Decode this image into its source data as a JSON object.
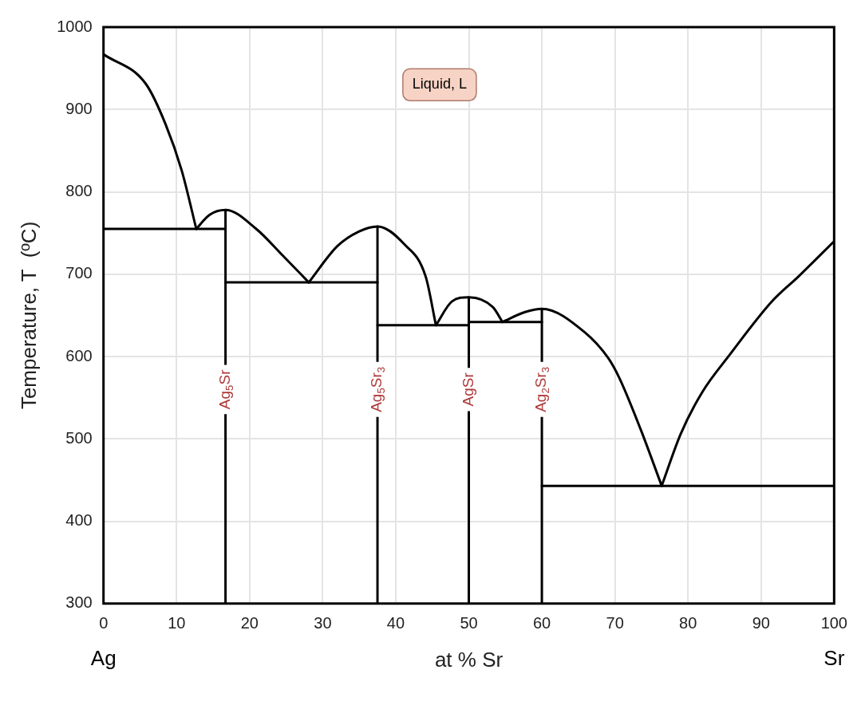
{
  "chart_data": {
    "type": "line",
    "xlabel": "at % Sr",
    "ylabel": "Temperature, T  (ºC)",
    "xlim": [
      0,
      100
    ],
    "ylim": [
      300,
      1000
    ],
    "xticks": [
      0,
      10,
      20,
      30,
      40,
      50,
      60,
      70,
      80,
      90,
      100
    ],
    "yticks": [
      300,
      400,
      500,
      600,
      700,
      800,
      900,
      1000
    ],
    "grid": true,
    "marker": "none",
    "line_style": "solid",
    "series": [
      {
        "color": "#000000",
        "x": [
          0,
          5.8,
          8.5,
          10.7,
          12.7
        ],
        "values": [
          967,
          931,
          882,
          826,
          755
        ]
      },
      {
        "color": "#000000",
        "x": [
          12.7,
          14.5,
          16.7,
          20.9,
          24.6,
          28.1
        ],
        "values": [
          755,
          772,
          778,
          755,
          722,
          690
        ]
      },
      {
        "color": "#000000",
        "x": [
          28.1,
          32,
          35,
          37.5,
          41.1,
          44.1,
          45.5
        ],
        "values": [
          690,
          734,
          752,
          758,
          737,
          697,
          638
        ]
      },
      {
        "color": "#000000",
        "x": [
          45.5,
          47.7,
          50,
          53.3,
          54.6
        ],
        "values": [
          638,
          667,
          672,
          660,
          642
        ]
      },
      {
        "color": "#000000",
        "x": [
          54.6,
          57.7,
          60,
          65.8,
          69.1,
          70.6,
          73.5,
          76.4
        ],
        "values": [
          642,
          654,
          658,
          630,
          598,
          574,
          512,
          443
        ]
      },
      {
        "color": "#000000",
        "x": [
          76.4,
          79,
          81.9,
          85.7,
          91.5,
          95.1,
          100
        ],
        "values": [
          443,
          506,
          556,
          602,
          667,
          697,
          740
        ]
      },
      {
        "color": "#000000",
        "x": [
          0,
          16.7
        ],
        "values": [
          755,
          755
        ]
      },
      {
        "color": "#000000",
        "x": [
          16.7,
          37.5
        ],
        "values": [
          690,
          690
        ]
      },
      {
        "color": "#000000",
        "x": [
          37.5,
          50
        ],
        "values": [
          638,
          638
        ]
      },
      {
        "color": "#000000",
        "x": [
          50,
          60
        ],
        "values": [
          642,
          642
        ]
      },
      {
        "color": "#000000",
        "x": [
          60,
          100
        ],
        "values": [
          443,
          443
        ]
      },
      {
        "color": "#000000",
        "x": [
          16.7,
          16.7
        ],
        "values": [
          300,
          778
        ]
      },
      {
        "color": "#000000",
        "x": [
          37.5,
          37.5
        ],
        "values": [
          300,
          758
        ]
      },
      {
        "color": "#000000",
        "x": [
          50,
          50
        ],
        "values": [
          300,
          672
        ]
      },
      {
        "color": "#000000",
        "x": [
          60,
          60
        ],
        "values": [
          300,
          658
        ]
      }
    ],
    "annotations": [
      "Liquid, L",
      {
        "text": "Ag$_{5}$Sr",
        "x": 16.7,
        "y": 560
      },
      {
        "text": "Ag$_{5}$Sr$_{3}$",
        "x": 37.5,
        "y": 560
      },
      {
        "text": "AgSr",
        "x": 50,
        "y": 560
      },
      {
        "text": "Ag$_{2}$Sr$_{3}$",
        "x": 60,
        "y": 560
      },
      "Ag",
      "Sr"
    ]
  }
}
